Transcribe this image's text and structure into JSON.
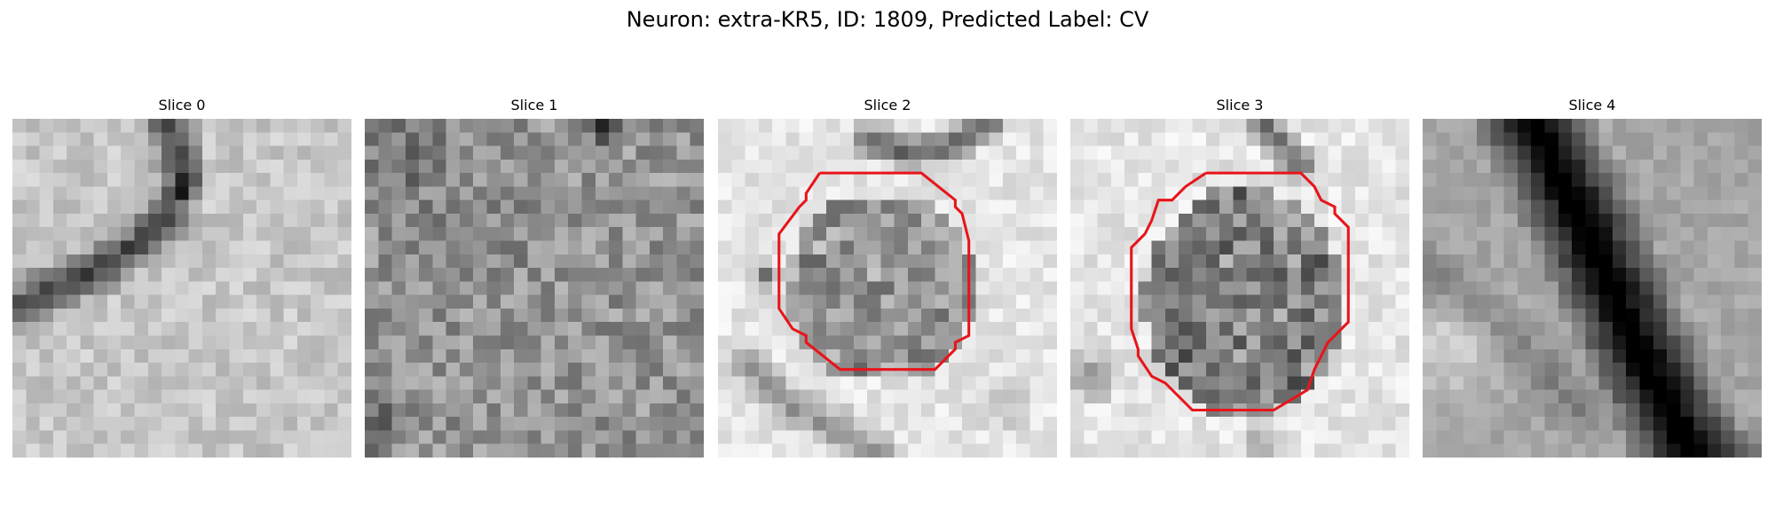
{
  "figure": {
    "title": "Neuron: extra-KR5, ID: 1809, Predicted Label: CV"
  },
  "slices": [
    {
      "title": "Slice 0",
      "has_contour": false
    },
    {
      "title": "Slice 1",
      "has_contour": false
    },
    {
      "title": "Slice 2",
      "has_contour": true
    },
    {
      "title": "Slice 3",
      "has_contour": true
    },
    {
      "title": "Slice 4",
      "has_contour": false
    }
  ],
  "colors": {
    "contour": "#e8141a",
    "colormap": "gray_r"
  }
}
